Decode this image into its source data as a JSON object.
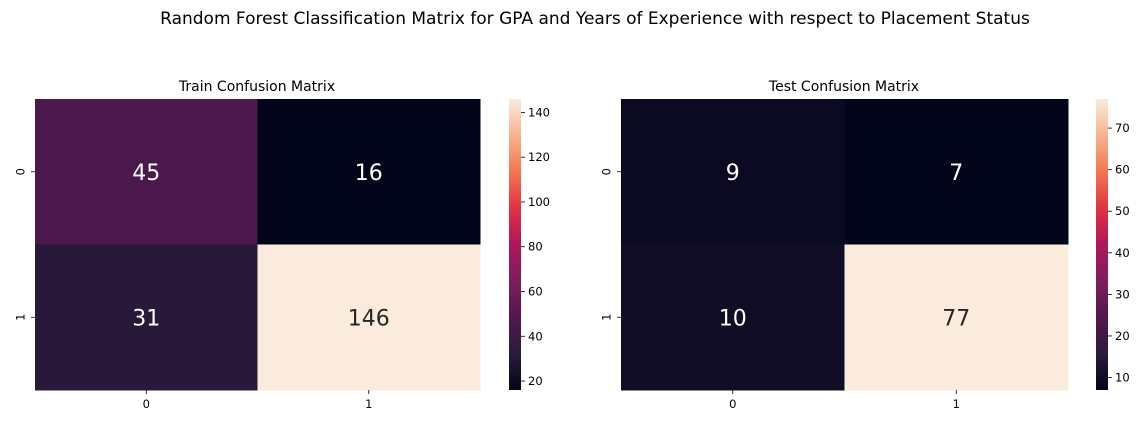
{
  "figure": {
    "suptitle": "Random Forest Classification Matrix for GPA and Years of Experience with respect to Placement Status"
  },
  "chart_data": [
    {
      "type": "heatmap",
      "title": "Train Confusion Matrix",
      "x_ticks": [
        "0",
        "1"
      ],
      "y_ticks": [
        "0",
        "1"
      ],
      "matrix": [
        [
          45,
          16
        ],
        [
          31,
          146
        ]
      ],
      "colormap": "rocket",
      "colorbar": {
        "range": [
          16,
          146
        ],
        "ticks": [
          20,
          40,
          60,
          80,
          100,
          120,
          140
        ]
      },
      "xlabel": "",
      "ylabel": ""
    },
    {
      "type": "heatmap",
      "title": "Test Confusion Matrix",
      "x_ticks": [
        "0",
        "1"
      ],
      "y_ticks": [
        "0",
        "1"
      ],
      "matrix": [
        [
          9,
          7
        ],
        [
          10,
          77
        ]
      ],
      "colormap": "rocket",
      "colorbar": {
        "range": [
          7,
          77
        ],
        "ticks": [
          10,
          20,
          30,
          40,
          50,
          60,
          70
        ]
      },
      "xlabel": "",
      "ylabel": ""
    }
  ]
}
